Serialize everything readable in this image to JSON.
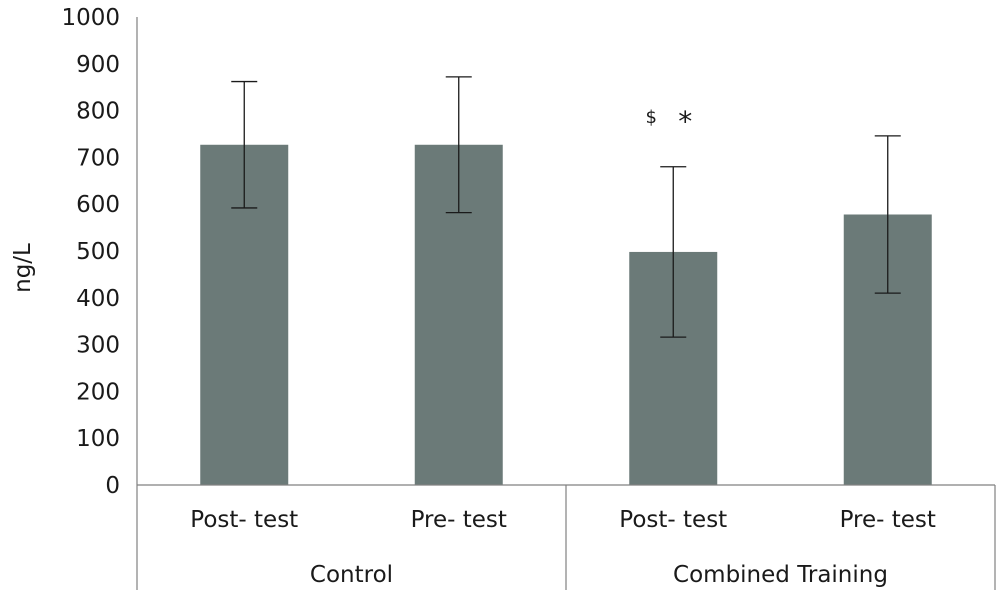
{
  "chart_data": {
    "type": "bar",
    "title": "",
    "xlabel": "",
    "ylabel": "ng/L",
    "ylim": [
      0,
      1000
    ],
    "yticks": [
      0,
      100,
      200,
      300,
      400,
      500,
      600,
      700,
      800,
      900,
      1000
    ],
    "categories": [
      "Post- test",
      "Pre- test",
      "Post- test",
      "Pre- test"
    ],
    "groups": [
      {
        "label": "Control",
        "categories": [
          "Post- test",
          "Pre- test"
        ]
      },
      {
        "label": "Combined Training",
        "categories": [
          "Post- test",
          "Pre- test"
        ]
      }
    ],
    "values": [
      727,
      727,
      498,
      578
    ],
    "errors": [
      135,
      145,
      182,
      168
    ],
    "annotations": [
      {
        "text": "$",
        "category_index": 2
      },
      {
        "text": "*",
        "category_index": 2
      }
    ],
    "bar_color": "#6b7a78",
    "grid": false
  }
}
